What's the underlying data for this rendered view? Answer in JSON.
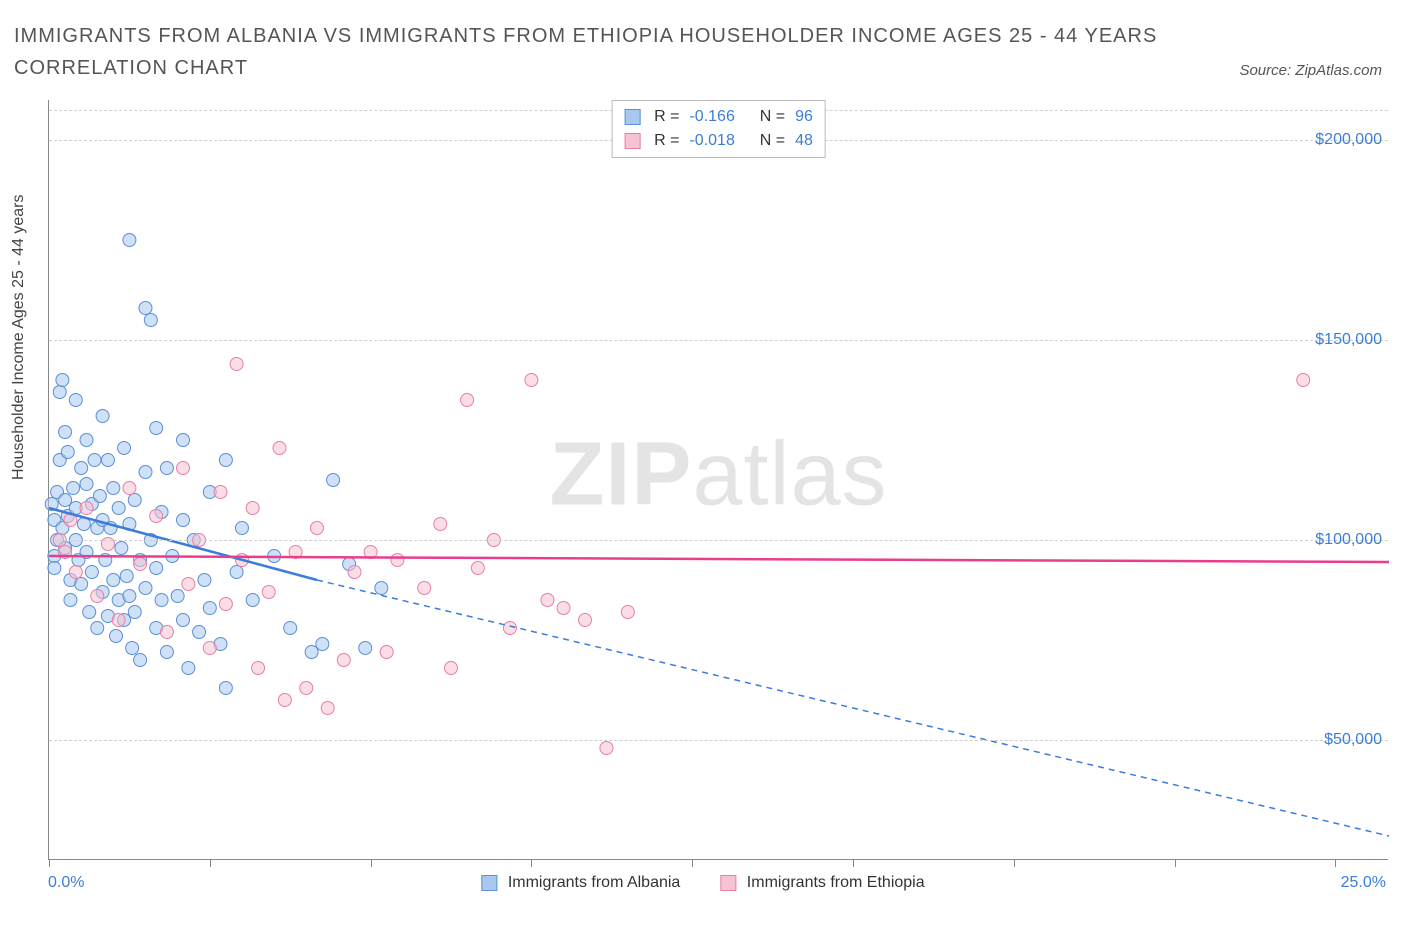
{
  "title": "IMMIGRANTS FROM ALBANIA VS IMMIGRANTS FROM ETHIOPIA HOUSEHOLDER INCOME AGES 25 - 44 YEARS CORRELATION CHART",
  "source_label": "Source: ZipAtlas.com",
  "watermark_a": "ZIP",
  "watermark_b": "atlas",
  "chart": {
    "type": "scatter",
    "x_axis": {
      "min": 0,
      "max": 25,
      "left_label": "0.0%",
      "right_label": "25.0%",
      "tick_positions": [
        0,
        3,
        6,
        9,
        12,
        15,
        18,
        21,
        24
      ]
    },
    "y_axis": {
      "label": "Householder Income Ages 25 - 44 years",
      "min": 20000,
      "max": 210000,
      "ticks": [
        50000,
        100000,
        150000,
        200000
      ],
      "tick_labels": [
        "$50,000",
        "$100,000",
        "$150,000",
        "$200,000"
      ]
    },
    "grid_color": "#d0d0d0",
    "background_color": "#ffffff",
    "marker_radius": 6.5,
    "marker_opacity": 0.55,
    "series": [
      {
        "name": "Immigrants from Albania",
        "color_fill": "#a8c8ef",
        "color_stroke": "#5b8fd6",
        "trend": {
          "solid_x": [
            0,
            5
          ],
          "solid_y": [
            108000,
            90000
          ],
          "dash_x": [
            5,
            25
          ],
          "dash_y": [
            90000,
            26000
          ],
          "stroke": "#3b7dd8",
          "width": 2.5
        },
        "stats": {
          "r_label": "R =",
          "r": "-0.166",
          "n_label": "N =",
          "n": "96"
        },
        "points": [
          [
            0.05,
            109000
          ],
          [
            0.1,
            105000
          ],
          [
            0.1,
            96000
          ],
          [
            0.1,
            93000
          ],
          [
            0.15,
            112000
          ],
          [
            0.15,
            100000
          ],
          [
            0.2,
            137000
          ],
          [
            0.2,
            120000
          ],
          [
            0.25,
            140000
          ],
          [
            0.25,
            103000
          ],
          [
            0.3,
            127000
          ],
          [
            0.3,
            110000
          ],
          [
            0.3,
            98000
          ],
          [
            0.35,
            122000
          ],
          [
            0.35,
            106000
          ],
          [
            0.4,
            90000
          ],
          [
            0.4,
            85000
          ],
          [
            0.45,
            113000
          ],
          [
            0.5,
            135000
          ],
          [
            0.5,
            108000
          ],
          [
            0.5,
            100000
          ],
          [
            0.55,
            95000
          ],
          [
            0.6,
            118000
          ],
          [
            0.6,
            89000
          ],
          [
            0.65,
            104000
          ],
          [
            0.7,
            125000
          ],
          [
            0.7,
            114000
          ],
          [
            0.7,
            97000
          ],
          [
            0.75,
            82000
          ],
          [
            0.8,
            109000
          ],
          [
            0.8,
            92000
          ],
          [
            0.85,
            120000
          ],
          [
            0.9,
            103000
          ],
          [
            0.9,
            78000
          ],
          [
            0.95,
            111000
          ],
          [
            1.0,
            131000
          ],
          [
            1.0,
            105000
          ],
          [
            1.0,
            87000
          ],
          [
            1.05,
            95000
          ],
          [
            1.1,
            120000
          ],
          [
            1.1,
            81000
          ],
          [
            1.15,
            103000
          ],
          [
            1.2,
            113000
          ],
          [
            1.2,
            90000
          ],
          [
            1.25,
            76000
          ],
          [
            1.3,
            108000
          ],
          [
            1.3,
            85000
          ],
          [
            1.35,
            98000
          ],
          [
            1.4,
            123000
          ],
          [
            1.4,
            80000
          ],
          [
            1.45,
            91000
          ],
          [
            1.5,
            175000
          ],
          [
            1.5,
            104000
          ],
          [
            1.5,
            86000
          ],
          [
            1.55,
            73000
          ],
          [
            1.6,
            110000
          ],
          [
            1.6,
            82000
          ],
          [
            1.7,
            95000
          ],
          [
            1.7,
            70000
          ],
          [
            1.8,
            158000
          ],
          [
            1.8,
            117000
          ],
          [
            1.8,
            88000
          ],
          [
            1.9,
            155000
          ],
          [
            1.9,
            100000
          ],
          [
            2.0,
            128000
          ],
          [
            2.0,
            93000
          ],
          [
            2.0,
            78000
          ],
          [
            2.1,
            107000
          ],
          [
            2.1,
            85000
          ],
          [
            2.2,
            118000
          ],
          [
            2.2,
            72000
          ],
          [
            2.3,
            96000
          ],
          [
            2.4,
            86000
          ],
          [
            2.5,
            125000
          ],
          [
            2.5,
            105000
          ],
          [
            2.5,
            80000
          ],
          [
            2.6,
            68000
          ],
          [
            2.7,
            100000
          ],
          [
            2.8,
            77000
          ],
          [
            2.9,
            90000
          ],
          [
            3.0,
            112000
          ],
          [
            3.0,
            83000
          ],
          [
            3.2,
            74000
          ],
          [
            3.3,
            120000
          ],
          [
            3.3,
            63000
          ],
          [
            3.5,
            92000
          ],
          [
            3.6,
            103000
          ],
          [
            3.8,
            85000
          ],
          [
            4.2,
            96000
          ],
          [
            4.5,
            78000
          ],
          [
            4.9,
            72000
          ],
          [
            5.1,
            74000
          ],
          [
            5.3,
            115000
          ],
          [
            5.6,
            94000
          ],
          [
            5.9,
            73000
          ],
          [
            6.2,
            88000
          ]
        ]
      },
      {
        "name": "Immigrants from Ethiopia",
        "color_fill": "#f5c3d1",
        "color_stroke": "#e97fa6",
        "trend": {
          "solid_x": [
            0,
            25
          ],
          "solid_y": [
            96000,
            94500
          ],
          "dash_x": [],
          "dash_y": [],
          "stroke": "#e83e8c",
          "width": 2.5
        },
        "stats": {
          "r_label": "R =",
          "r": "-0.018",
          "n_label": "N =",
          "n": "48"
        },
        "points": [
          [
            0.2,
            100000
          ],
          [
            0.3,
            97000
          ],
          [
            0.4,
            105000
          ],
          [
            0.5,
            92000
          ],
          [
            0.7,
            108000
          ],
          [
            0.9,
            86000
          ],
          [
            1.1,
            99000
          ],
          [
            1.3,
            80000
          ],
          [
            1.5,
            113000
          ],
          [
            1.7,
            94000
          ],
          [
            2.0,
            106000
          ],
          [
            2.2,
            77000
          ],
          [
            2.5,
            118000
          ],
          [
            2.6,
            89000
          ],
          [
            2.8,
            100000
          ],
          [
            3.0,
            73000
          ],
          [
            3.2,
            112000
          ],
          [
            3.3,
            84000
          ],
          [
            3.5,
            144000
          ],
          [
            3.6,
            95000
          ],
          [
            3.8,
            108000
          ],
          [
            3.9,
            68000
          ],
          [
            4.1,
            87000
          ],
          [
            4.3,
            123000
          ],
          [
            4.4,
            60000
          ],
          [
            4.6,
            97000
          ],
          [
            4.8,
            63000
          ],
          [
            5.0,
            103000
          ],
          [
            5.2,
            58000
          ],
          [
            5.5,
            70000
          ],
          [
            5.7,
            92000
          ],
          [
            6.0,
            97000
          ],
          [
            6.3,
            72000
          ],
          [
            6.5,
            95000
          ],
          [
            7.0,
            88000
          ],
          [
            7.3,
            104000
          ],
          [
            7.5,
            68000
          ],
          [
            7.8,
            135000
          ],
          [
            8.0,
            93000
          ],
          [
            8.3,
            100000
          ],
          [
            8.6,
            78000
          ],
          [
            9.0,
            140000
          ],
          [
            9.3,
            85000
          ],
          [
            9.6,
            83000
          ],
          [
            10.0,
            80000
          ],
          [
            10.4,
            48000
          ],
          [
            10.8,
            82000
          ],
          [
            23.4,
            140000
          ]
        ]
      }
    ]
  }
}
